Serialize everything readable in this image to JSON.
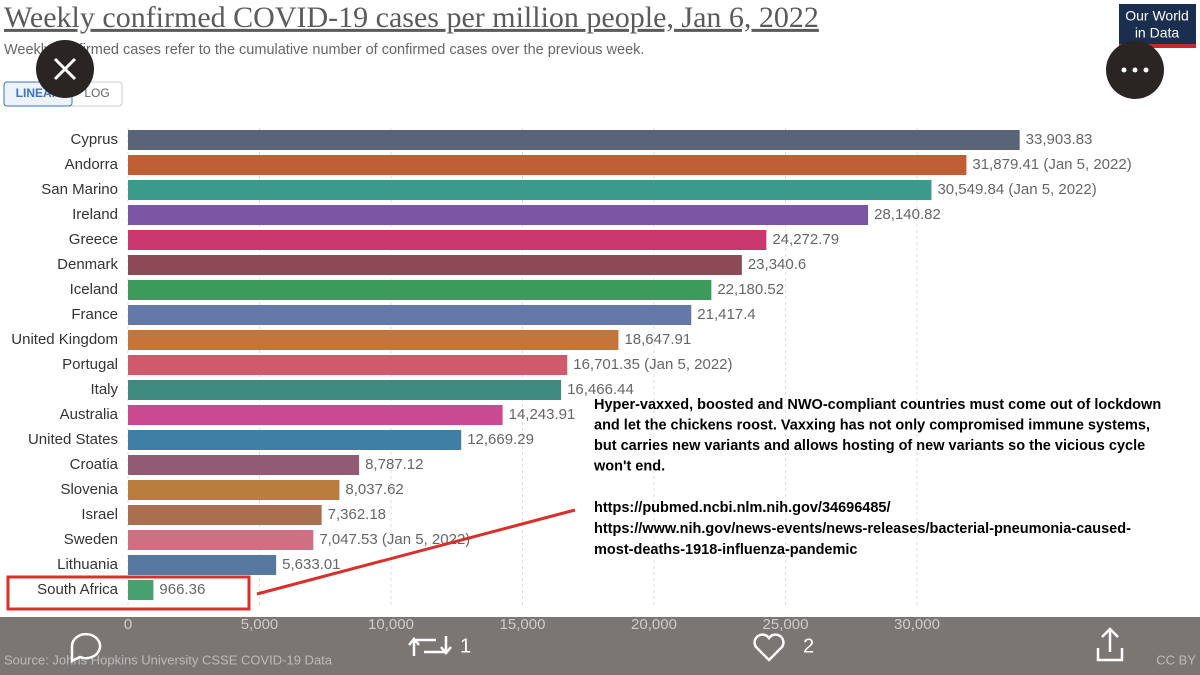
{
  "chart_data": {
    "type": "bar",
    "orientation": "horizontal",
    "title": "Weekly confirmed COVID-19 cases per million people, Jan 6, 2022",
    "subtitle": "Weekly confirmed cases refer to the cumulative number of confirmed cases over the previous week.",
    "scale_options": [
      "LINEAR",
      "LOG"
    ],
    "logo": [
      "Our World",
      "in Data"
    ],
    "source": "Source: Johns Hopkins University CSSE COVID-19 Data",
    "license": "CC BY",
    "categories": [
      "Cyprus",
      "Andorra",
      "San Marino",
      "Ireland",
      "Greece",
      "Denmark",
      "Iceland",
      "France",
      "United Kingdom",
      "Portugal",
      "Italy",
      "Australia",
      "United States",
      "Croatia",
      "Slovenia",
      "Israel",
      "Sweden",
      "Lithuania",
      "South Africa"
    ],
    "values": [
      33903.83,
      31879.41,
      30549.84,
      28140.82,
      24272.79,
      23340.6,
      22180.52,
      21417.4,
      18647.91,
      16701.35,
      16466.44,
      14243.91,
      12669.29,
      8787.12,
      8037.62,
      7362.18,
      7047.53,
      5633.01,
      966.36
    ],
    "value_labels": [
      "33,903.83",
      "31,879.41 (Jan 5, 2022)",
      "30,549.84 (Jan 5, 2022)",
      "28,140.82",
      "24,272.79",
      "23,340.6",
      "22,180.52",
      "21,417.4",
      "18,647.91",
      "16,701.35 (Jan 5, 2022)",
      "16,466.44",
      "14,243.91",
      "12,669.29",
      "8,787.12",
      "8,037.62",
      "7,362.18",
      "7,047.53 (Jan 5, 2022)",
      "5,633.01",
      "966.36"
    ],
    "colors": [
      "#5a6478",
      "#c05e36",
      "#3b9a8c",
      "#7b57a3",
      "#c8386f",
      "#8b4a55",
      "#3c9a5a",
      "#6479a8",
      "#c4763a",
      "#d05a6b",
      "#3f8a7e",
      "#c94a92",
      "#3f7fa6",
      "#915a75",
      "#b97e3e",
      "#a9704f",
      "#cf6f82",
      "#57789e",
      "#47a070"
    ],
    "xlim": [
      0,
      34000
    ],
    "xticks": [
      0,
      {
        "value": 5000,
        "label": "5,000"
      },
      {
        "value": 10000,
        "label": "10,000"
      },
      {
        "value": 15000,
        "label": "15,000"
      },
      {
        "value": 20000,
        "label": "20,000"
      },
      {
        "value": 25000,
        "label": "25,000"
      },
      {
        "value": 30000,
        "label": "30,000"
      }
    ],
    "grid": true
  },
  "annotation": {
    "text": [
      "Hyper-vaxxed, boosted and NWO-compliant countries must come out of lockdown",
      "and let the chickens roost. Vaxxing has not only compromised immune systems,",
      "but carries new variants and allows hosting of new variants so the vicious cycle",
      "won't end."
    ],
    "links": [
      "https://pubmed.ncbi.nlm.nih.gov/34696485/",
      "https://www.nih.gov/news-events/news-releases/bacterial-pneumonia-caused-",
      "most-deaths-1918-influenza-pandemic"
    ]
  },
  "toolbar": {
    "retweets": 1,
    "likes": 2
  }
}
